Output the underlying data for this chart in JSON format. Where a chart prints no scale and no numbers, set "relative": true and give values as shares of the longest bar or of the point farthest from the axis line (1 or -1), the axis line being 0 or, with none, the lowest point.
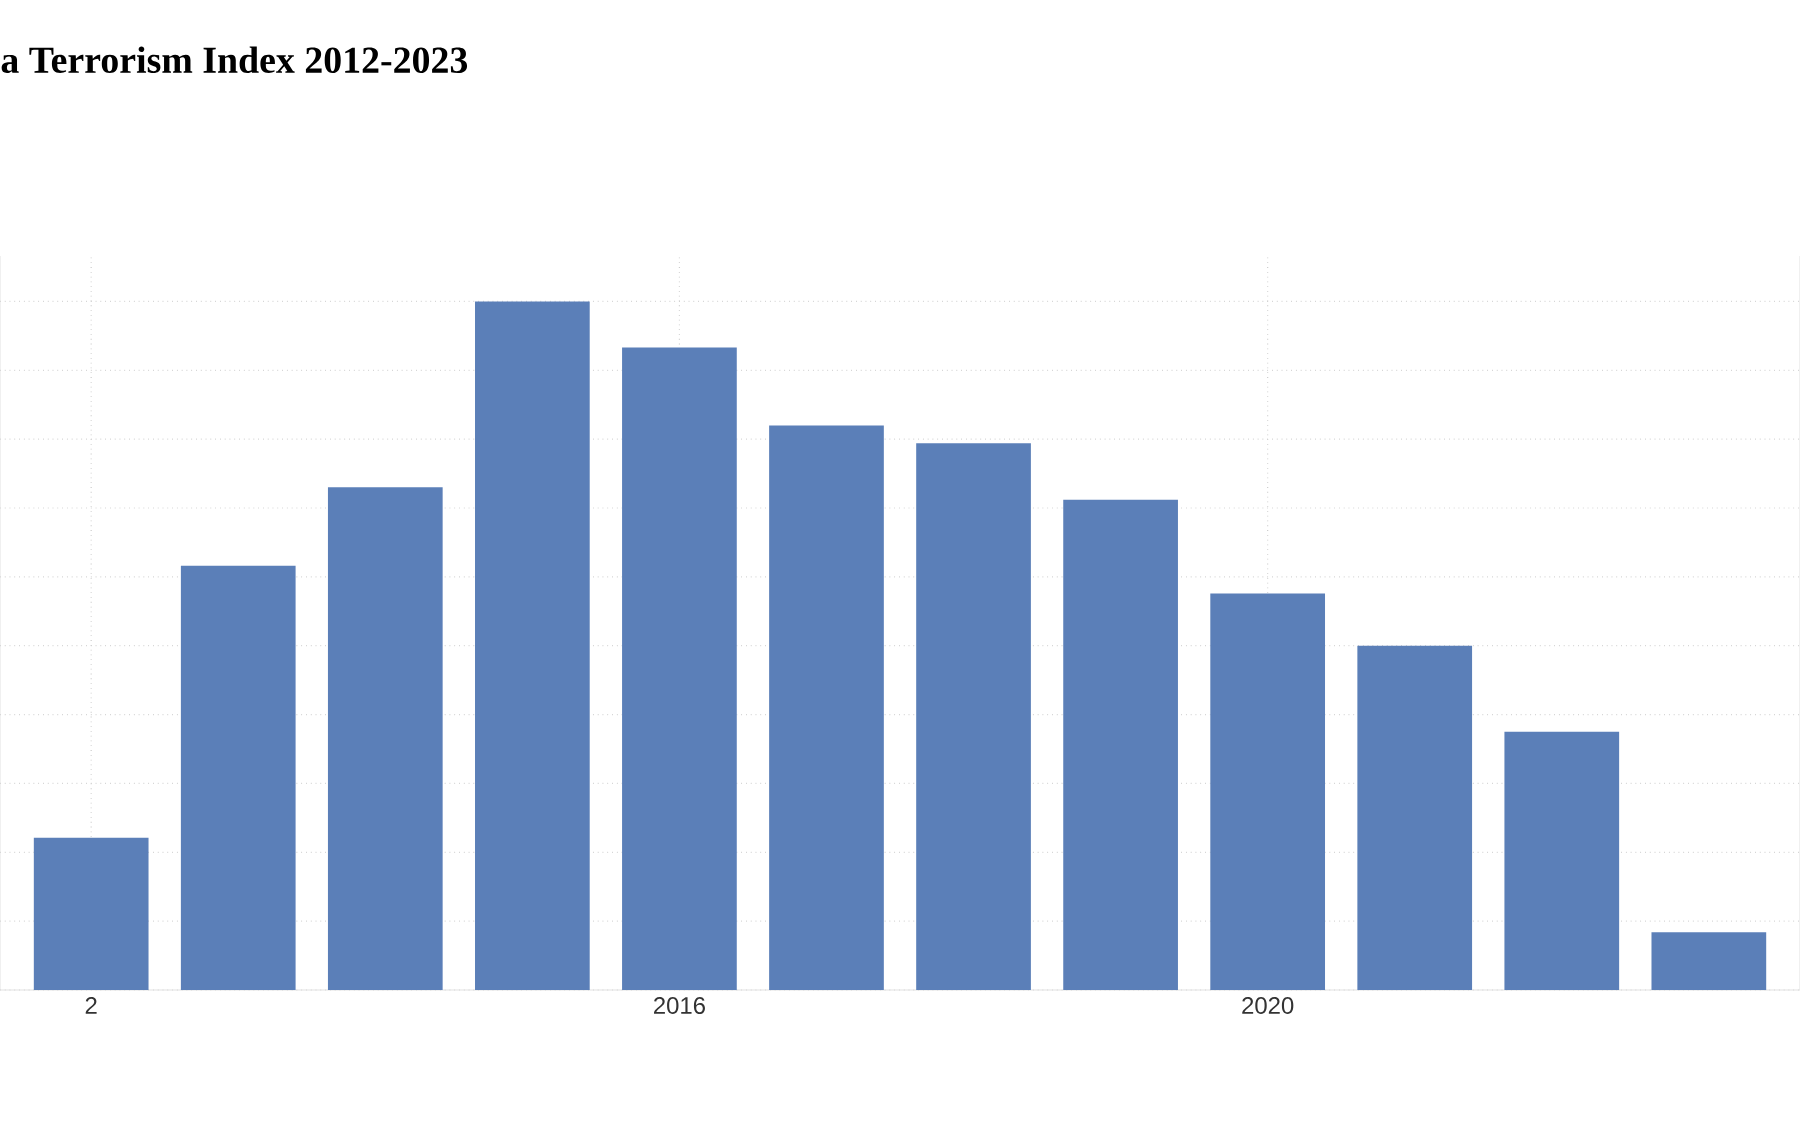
{
  "chart_data": {
    "type": "bar",
    "title": "a Terrorism Index 2012-2023",
    "categories": [
      "2",
      null,
      null,
      null,
      "2016",
      null,
      null,
      null,
      "2020",
      null,
      null,
      null
    ],
    "values": [
      0.221,
      0.616,
      0.73,
      1,
      0.933,
      0.82,
      0.794,
      0.712,
      0.576,
      0.5,
      0.375,
      0.084
    ],
    "color": "#5b7fb8",
    "relative": true,
    "grid": true
  }
}
